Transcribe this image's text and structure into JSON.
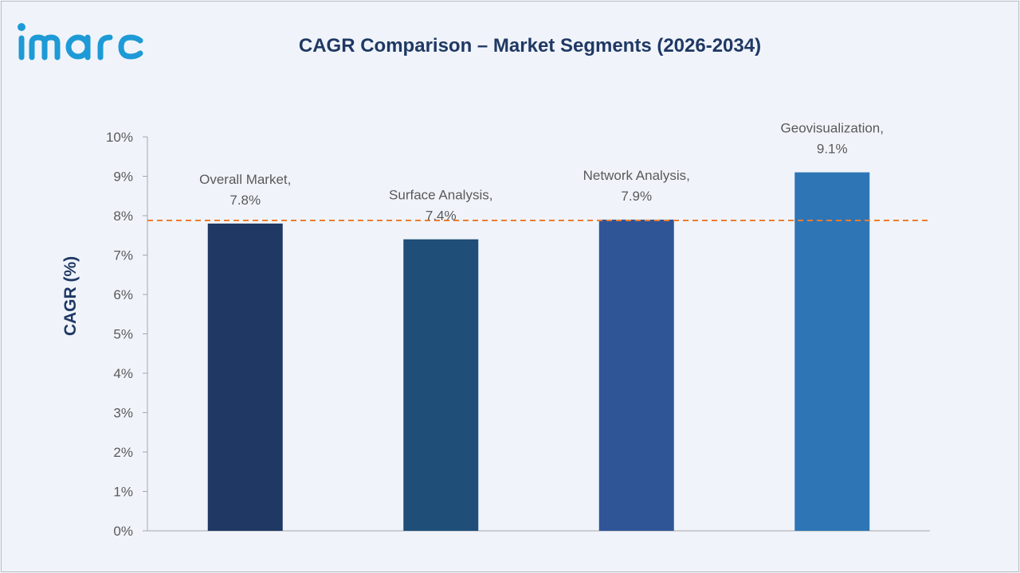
{
  "brand": {
    "logo_text": "imarc",
    "logo_color": "#1e9ad6"
  },
  "chart_data": {
    "type": "bar",
    "title": "CAGR Comparison – Market Segments (2026-2034)",
    "xlabel": "",
    "ylabel": "CAGR (%)",
    "categories": [
      "Overall Market",
      "Surface Analysis",
      "Network Analysis",
      "Geovisualization"
    ],
    "values": [
      7.8,
      7.4,
      7.9,
      9.1
    ],
    "data_labels": [
      [
        "Overall Market,",
        "7.8%"
      ],
      [
        "Surface Analysis,",
        "7.4%"
      ],
      [
        "Network Analysis,",
        "7.9%"
      ],
      [
        "Geovisualization,",
        "9.1%"
      ]
    ],
    "bar_colors": [
      "#1f3864",
      "#1f4e79",
      "#2f5597",
      "#2e75b6"
    ],
    "ylim": [
      0,
      10
    ],
    "yticks": [
      0,
      1,
      2,
      3,
      4,
      5,
      6,
      7,
      8,
      9,
      10
    ],
    "ytick_labels": [
      "0%",
      "1%",
      "2%",
      "3%",
      "4%",
      "5%",
      "6%",
      "7%",
      "8%",
      "9%",
      "10%"
    ],
    "reference_line": {
      "value": 7.88,
      "style": "dashed",
      "color": "#ed7d31"
    },
    "grid": false,
    "legend": "none"
  }
}
